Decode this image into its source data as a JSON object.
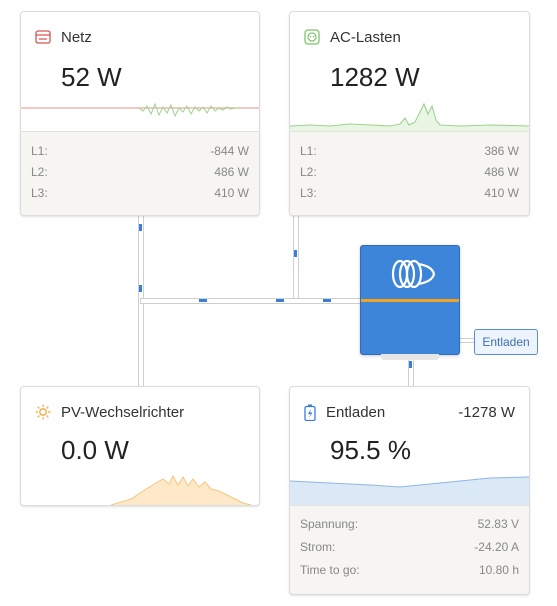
{
  "grid": {
    "title": "Netz",
    "value": "52 W",
    "phases": [
      {
        "label": "L1:",
        "value": "-844 W"
      },
      {
        "label": "L2:",
        "value": "486 W"
      },
      {
        "label": "L3:",
        "value": "410 W"
      }
    ],
    "color": "#d9534f"
  },
  "ac_loads": {
    "title": "AC-Lasten",
    "value": "1282 W",
    "phases": [
      {
        "label": "L1:",
        "value": "386 W"
      },
      {
        "label": "L2:",
        "value": "486 W"
      },
      {
        "label": "L3:",
        "value": "410 W"
      }
    ],
    "color": "#7dc46a"
  },
  "pv_inverter": {
    "title": "PV-Wechselrichter",
    "value": "0.0 W",
    "color": "#f3a93b"
  },
  "battery": {
    "title": "Entladen",
    "power": "-1278 W",
    "soc": "95.5 %",
    "details": [
      {
        "label": "Spannung:",
        "value": "52.83 V"
      },
      {
        "label": "Strom:",
        "value": "-24.20 A"
      },
      {
        "label": "Time to go:",
        "value": "10.80 h"
      }
    ],
    "color": "#3b7dd8"
  },
  "inverter": {
    "status_badge": "Entladen",
    "accent": "#3d85d8",
    "stripe": "#f2a21c"
  }
}
